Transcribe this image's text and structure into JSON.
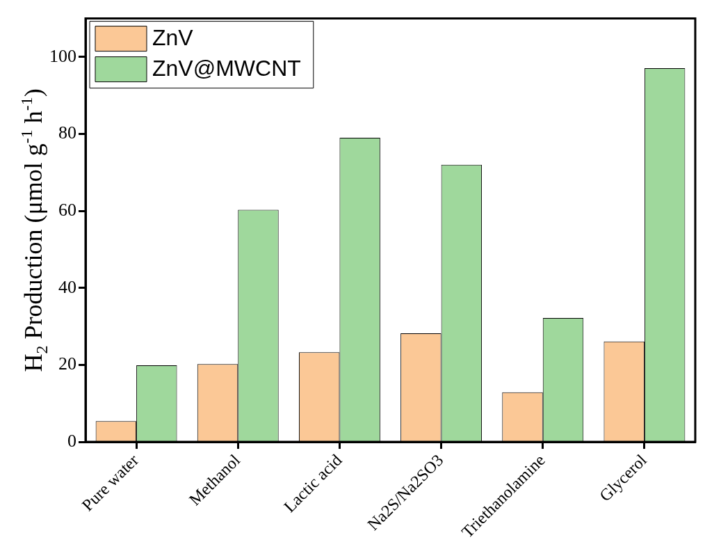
{
  "chart_data": {
    "type": "bar",
    "ylabel": "H$_{2}$ Production (μmol g$^{-1}$ h$^{-1}$)",
    "categories": [
      "Pure water",
      "Methanol",
      "Lactic acid",
      "Na2S/Na2SO3",
      "Triethanolamine",
      "Glycerol"
    ],
    "series": [
      {
        "name": "ZnV",
        "color": "#fbc896",
        "values": [
          5.4,
          20.2,
          23.3,
          28.2,
          12.9,
          26.1
        ]
      },
      {
        "name": "ZnV@MWCNT",
        "color": "#9fd89c",
        "values": [
          19.9,
          60.3,
          79.0,
          72.0,
          32.2,
          97.1
        ]
      }
    ],
    "ylim": [
      0,
      110
    ],
    "yticks": [
      0,
      20,
      40,
      60,
      80,
      100
    ],
    "grid": false,
    "legend": "top left"
  }
}
